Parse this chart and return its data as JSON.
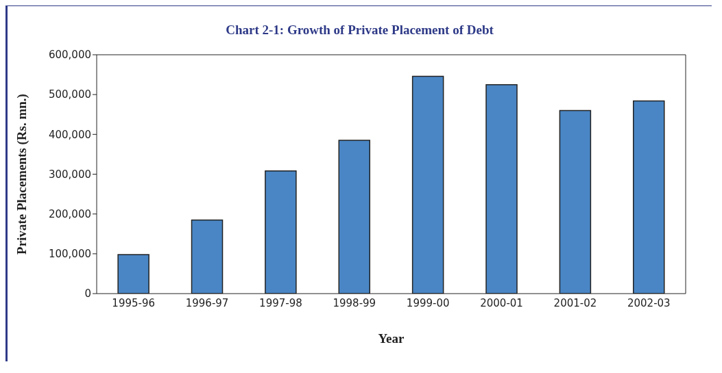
{
  "chart_data": {
    "type": "bar",
    "title": "Chart 2-1: Growth of Private Placement of Debt",
    "xlabel": "Year",
    "ylabel": "Private Placements (Rs. mn.)",
    "categories": [
      "1995-96",
      "1996-97",
      "1997-98",
      "1998-99",
      "1999-00",
      "2000-01",
      "2001-02",
      "2002-03"
    ],
    "values": [
      98000,
      185000,
      308000,
      385000,
      546000,
      525000,
      460000,
      484000
    ],
    "color": "#4a86c5",
    "ylim": [
      0,
      600000
    ],
    "yticks": [
      0,
      {
        "value": 100000,
        "label": "100,000"
      },
      {
        "value": 200000,
        "label": "200,000"
      },
      {
        "value": 300000,
        "label": "300,000"
      },
      {
        "value": 400000,
        "label": "400,000"
      },
      {
        "value": 500000,
        "label": "500,000"
      },
      {
        "value": 600000,
        "label": "600,000"
      }
    ]
  }
}
